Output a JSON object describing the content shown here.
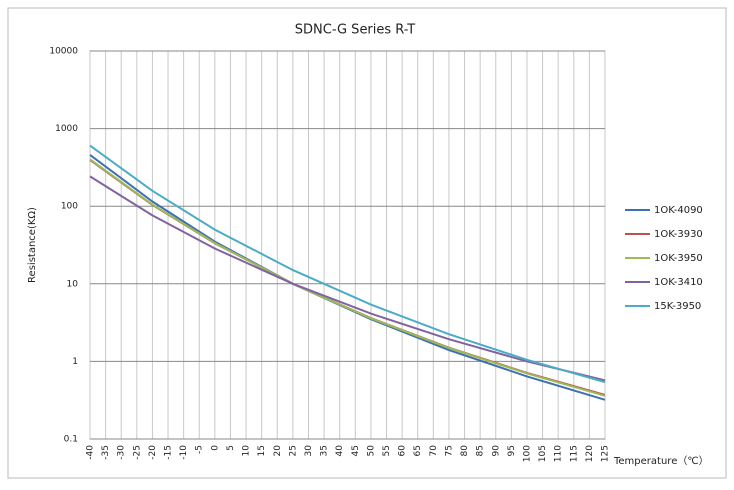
{
  "chart_data": {
    "type": "line",
    "title": "SDNC-G Series R-T",
    "y_label": "Resistance(KΩ)",
    "x_label": "Temperature（℃）",
    "log_y": true,
    "grid": true,
    "legend": "right",
    "x": [
      -40,
      -20,
      0,
      25,
      50,
      75,
      100,
      125
    ],
    "series": [
      {
        "name": "1OK-4090",
        "color": "#3f6fb5",
        "values": [
          458,
          115,
          35,
          10,
          3.5,
          1.4,
          0.64,
          0.32
        ]
      },
      {
        "name": "1OK-3930",
        "color": "#c0504d",
        "values": [
          394,
          104,
          33.4,
          10,
          3.61,
          1.5,
          0.71,
          0.37
        ]
      },
      {
        "name": "1OK-3950",
        "color": "#9bbb59",
        "values": [
          402,
          105,
          33.6,
          10,
          3.59,
          1.49,
          0.7,
          0.36
        ]
      },
      {
        "name": "1OK-3410",
        "color": "#8064a2",
        "values": [
          242,
          76,
          28.5,
          10,
          4.13,
          1.93,
          1.0,
          0.57
        ]
      },
      {
        "name": "15K-3950",
        "color": "#4bacc6",
        "values": [
          603,
          158,
          50,
          15,
          5.4,
          2.24,
          1.05,
          0.54
        ]
      }
    ],
    "xlim": [
      -40,
      125
    ],
    "xticks": [
      -40,
      -35,
      -30,
      -25,
      -20,
      -15,
      -10,
      -5,
      0,
      5,
      10,
      15,
      20,
      25,
      30,
      35,
      40,
      45,
      50,
      55,
      60,
      65,
      70,
      75,
      80,
      85,
      90,
      95,
      100,
      105,
      110,
      115,
      120,
      125
    ],
    "ylim": [
      0.1,
      10000
    ],
    "yticks": [
      0.1,
      1,
      10,
      100,
      1000,
      10000
    ]
  }
}
